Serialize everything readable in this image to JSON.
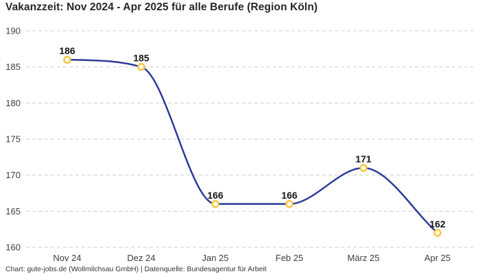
{
  "chart_data": {
    "type": "line",
    "title": "Vakanzzeit: Nov 2024 - Apr 2025 für alle Berufe (Region Köln)",
    "categories": [
      "Nov 24",
      "Dez 24",
      "Jan 25",
      "Feb 25",
      "März 25",
      "Apr 25"
    ],
    "values": [
      186,
      185,
      166,
      166,
      171,
      162
    ],
    "ylim": [
      160,
      190
    ],
    "yticks": [
      160,
      165,
      170,
      175,
      180,
      185,
      190
    ],
    "xlabel": "",
    "ylabel": "",
    "grid": "horizontal-dashed",
    "legend_position": "none",
    "show_data_labels": true,
    "interpolation": "smooth-monotone",
    "colors": {
      "line": "#2b3a9a",
      "marker": "#f7c541",
      "marker_fill": "#ffffff",
      "grid": "#cccccc",
      "tick": "#3c3c3c",
      "label": "#141414",
      "background": "#ffffff"
    }
  },
  "footer": {
    "text": "Chart: gute-jobs.de (Wollmilchsau GmbH) | Datenquelle: Bundesagentur für Arbeit"
  }
}
